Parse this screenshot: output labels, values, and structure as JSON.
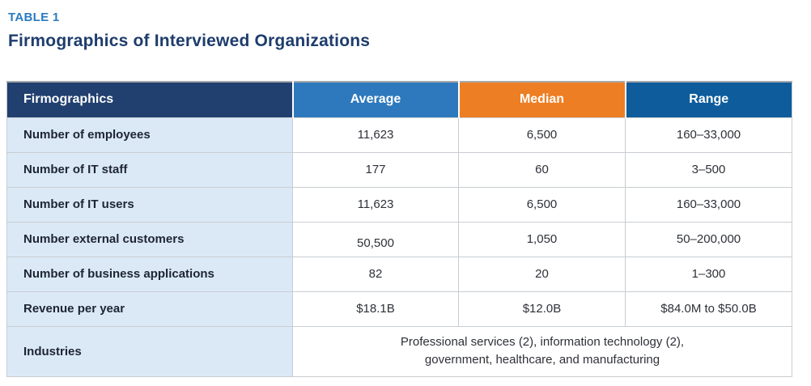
{
  "header": {
    "eyebrow": "TABLE 1",
    "title": "Firmographics of Interviewed Organizations"
  },
  "table": {
    "columns": [
      {
        "label": "Firmographics"
      },
      {
        "label": "Average"
      },
      {
        "label": "Median"
      },
      {
        "label": "Range"
      }
    ],
    "rows": [
      {
        "label": "Number of employees",
        "average": "11,623",
        "median": "6,500",
        "range": "160–33,000"
      },
      {
        "label": "Number of IT staff",
        "average": "177",
        "median": "60",
        "range": "3–500"
      },
      {
        "label": "Number of IT users",
        "average": "11,623",
        "median": "6,500",
        "range": "160–33,000"
      },
      {
        "label": "Number external customers",
        "average": "50,500",
        "median": "1,050",
        "range": "50–200,000"
      },
      {
        "label": "Number of business applications",
        "average": "82",
        "median": "20",
        "range": "1–300"
      },
      {
        "label": "Revenue per year",
        "average": "$18.1B",
        "median": "$12.0B",
        "range": "$84.0M to $50.0B"
      }
    ],
    "industries_row": {
      "label": "Industries",
      "value_line1": "Professional services (2), information technology (2),",
      "value_line2": "government, healthcare, and manufacturing"
    }
  },
  "colors": {
    "eyebrow_blue": "#2b7bc0",
    "title_navy": "#1e3c6d",
    "header_firmographics_bg": "#21406f",
    "header_average_bg": "#2e79bd",
    "header_median_bg": "#ee7e23",
    "header_range_bg": "#0e5c9c",
    "row_label_bg": "#dbe9f7",
    "grid_border": "#c9cdd1",
    "label_text": "#1d2533",
    "value_text": "#2e3138"
  }
}
